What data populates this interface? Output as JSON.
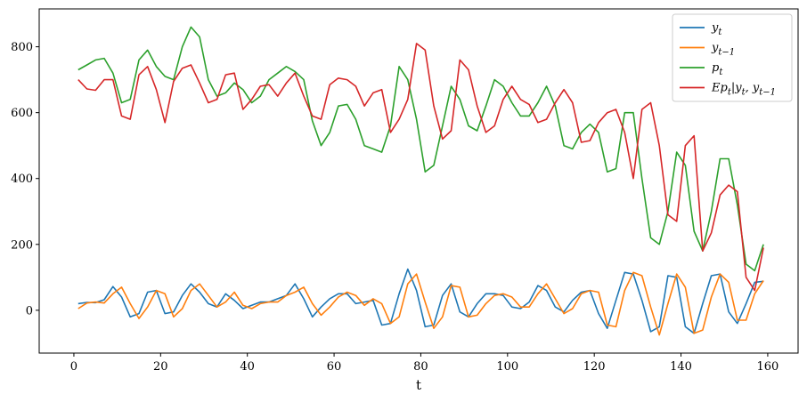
{
  "chart_data": {
    "type": "line",
    "title": "",
    "xlabel": "t",
    "ylabel": "",
    "xlim": [
      -8,
      167
    ],
    "ylim": [
      -130,
      915
    ],
    "xticks": [
      0,
      20,
      40,
      60,
      80,
      100,
      120,
      140,
      160
    ],
    "yticks": [
      0,
      200,
      400,
      600,
      800
    ],
    "grid": false,
    "legend_position": "top-right",
    "series": [
      {
        "name": "y_t",
        "color": "#1f77b4",
        "x": [
          1,
          3,
          5,
          7,
          9,
          11,
          13,
          15,
          17,
          19,
          21,
          23,
          25,
          27,
          29,
          31,
          33,
          35,
          37,
          39,
          41,
          43,
          45,
          47,
          49,
          51,
          53,
          55,
          57,
          59,
          61,
          63,
          65,
          67,
          69,
          71,
          73,
          75,
          77,
          79,
          81,
          83,
          85,
          87,
          89,
          91,
          93,
          95,
          97,
          99,
          101,
          103,
          105,
          107,
          109,
          111,
          113,
          115,
          117,
          119,
          121,
          123,
          125,
          127,
          129,
          131,
          133,
          135,
          137,
          139,
          141,
          143,
          145,
          147,
          149,
          151,
          153,
          155,
          157,
          159
        ],
        "values": [
          20,
          24,
          23,
          32,
          72,
          40,
          -20,
          -10,
          55,
          60,
          -10,
          -5,
          45,
          80,
          55,
          20,
          10,
          50,
          30,
          5,
          15,
          25,
          25,
          35,
          45,
          80,
          35,
          -20,
          10,
          35,
          50,
          50,
          20,
          25,
          30,
          -45,
          -40,
          50,
          125,
          60,
          -50,
          -45,
          45,
          80,
          -5,
          -20,
          20,
          50,
          50,
          45,
          10,
          5,
          25,
          75,
          60,
          10,
          -5,
          30,
          55,
          60,
          -10,
          -55,
          30,
          115,
          110,
          30,
          -65,
          -50,
          105,
          100,
          -50,
          -70,
          20,
          105,
          110,
          -5,
          -40,
          20,
          85,
          88
        ]
      },
      {
        "name": "y_{t-1}",
        "color": "#ff7f0e",
        "x": [
          1,
          3,
          5,
          7,
          9,
          11,
          13,
          15,
          17,
          19,
          21,
          23,
          25,
          27,
          29,
          31,
          33,
          35,
          37,
          39,
          41,
          43,
          45,
          47,
          49,
          51,
          53,
          55,
          57,
          59,
          61,
          63,
          65,
          67,
          69,
          71,
          73,
          75,
          77,
          79,
          81,
          83,
          85,
          87,
          89,
          91,
          93,
          95,
          97,
          99,
          101,
          103,
          105,
          107,
          109,
          111,
          113,
          115,
          117,
          119,
          121,
          123,
          125,
          127,
          129,
          131,
          133,
          135,
          137,
          139,
          141,
          143,
          145,
          147,
          149,
          151,
          153,
          155,
          157,
          159
        ],
        "values": [
          5,
          22,
          25,
          22,
          50,
          70,
          20,
          -25,
          10,
          60,
          50,
          -20,
          5,
          60,
          80,
          45,
          10,
          25,
          55,
          15,
          5,
          20,
          25,
          25,
          45,
          55,
          70,
          20,
          -15,
          10,
          40,
          55,
          45,
          15,
          35,
          20,
          -40,
          -20,
          80,
          110,
          25,
          -55,
          -20,
          75,
          70,
          -20,
          -15,
          20,
          45,
          50,
          40,
          10,
          10,
          50,
          80,
          35,
          -10,
          5,
          50,
          60,
          55,
          -45,
          -50,
          60,
          115,
          105,
          10,
          -75,
          20,
          110,
          70,
          -70,
          -60,
          40,
          110,
          85,
          -30,
          -30,
          50,
          90
        ]
      },
      {
        "name": "p_t",
        "color": "#2ca02c",
        "x": [
          1,
          3,
          5,
          7,
          9,
          11,
          13,
          15,
          17,
          19,
          21,
          23,
          25,
          27,
          29,
          31,
          33,
          35,
          37,
          39,
          41,
          43,
          45,
          47,
          49,
          51,
          53,
          55,
          57,
          59,
          61,
          63,
          65,
          67,
          69,
          71,
          73,
          75,
          77,
          79,
          81,
          83,
          85,
          87,
          89,
          91,
          93,
          95,
          97,
          99,
          101,
          103,
          105,
          107,
          109,
          111,
          113,
          115,
          117,
          119,
          121,
          123,
          125,
          127,
          129,
          131,
          133,
          135,
          137,
          139,
          141,
          143,
          145,
          147,
          149,
          151,
          153,
          155,
          157,
          159
        ],
        "values": [
          730,
          745,
          760,
          765,
          720,
          630,
          640,
          760,
          790,
          740,
          710,
          700,
          800,
          860,
          830,
          700,
          650,
          660,
          690,
          670,
          630,
          650,
          700,
          720,
          740,
          725,
          700,
          575,
          500,
          540,
          620,
          625,
          580,
          500,
          490,
          480,
          560,
          740,
          700,
          580,
          420,
          440,
          560,
          680,
          640,
          560,
          545,
          620,
          700,
          680,
          630,
          590,
          590,
          630,
          680,
          620,
          500,
          490,
          540,
          565,
          540,
          420,
          430,
          600,
          600,
          400,
          220,
          200,
          300,
          480,
          440,
          240,
          180,
          300,
          460,
          460,
          320,
          140,
          120,
          200
        ]
      },
      {
        "name": "Ep_t|y_t, y_{t-1}",
        "color": "#d62728",
        "x": [
          1,
          3,
          5,
          7,
          9,
          11,
          13,
          15,
          17,
          19,
          21,
          23,
          25,
          27,
          29,
          31,
          33,
          35,
          37,
          39,
          41,
          43,
          45,
          47,
          49,
          51,
          53,
          55,
          57,
          59,
          61,
          63,
          65,
          67,
          69,
          71,
          73,
          75,
          77,
          79,
          81,
          83,
          85,
          87,
          89,
          91,
          93,
          95,
          97,
          99,
          101,
          103,
          105,
          107,
          109,
          111,
          113,
          115,
          117,
          119,
          121,
          123,
          125,
          127,
          129,
          131,
          133,
          135,
          137,
          139,
          141,
          143,
          145,
          147,
          149,
          151,
          153,
          155,
          157,
          159
        ],
        "values": [
          700,
          672,
          668,
          700,
          700,
          590,
          580,
          715,
          740,
          670,
          570,
          695,
          735,
          745,
          690,
          630,
          640,
          715,
          720,
          610,
          640,
          680,
          685,
          650,
          690,
          720,
          650,
          590,
          580,
          685,
          705,
          700,
          680,
          620,
          660,
          670,
          540,
          580,
          640,
          810,
          790,
          620,
          520,
          545,
          760,
          730,
          620,
          540,
          560,
          640,
          680,
          640,
          625,
          570,
          580,
          630,
          670,
          630,
          510,
          515,
          570,
          600,
          610,
          540,
          400,
          610,
          630,
          500,
          290,
          270,
          500,
          530,
          180,
          235,
          350,
          380,
          360,
          100,
          60,
          190
        ]
      }
    ]
  }
}
